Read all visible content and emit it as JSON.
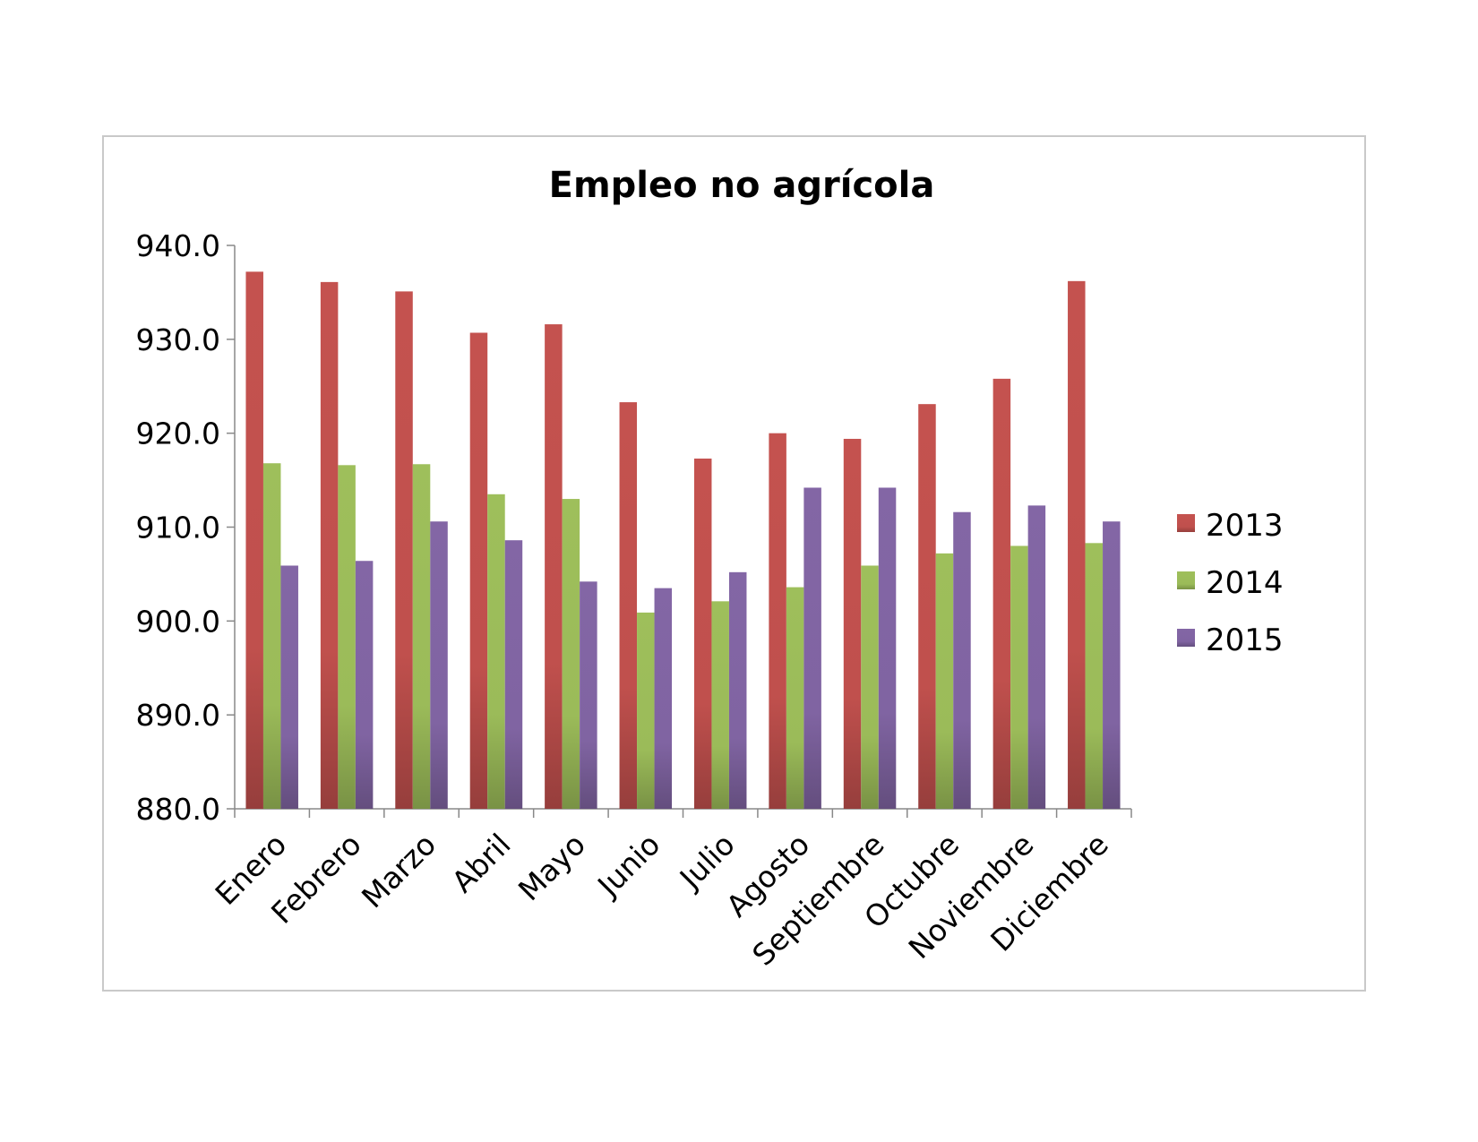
{
  "chart_data": {
    "type": "bar",
    "title": "Empleo no agrícola",
    "categories": [
      "Enero",
      "Febrero",
      "Marzo",
      "Abril",
      "Mayo",
      "Junio",
      "Julio",
      "Agosto",
      "Septiembre",
      "Octubre",
      "Noviembre",
      "Diciembre"
    ],
    "series": [
      {
        "name": "2013",
        "color": "#c0504d",
        "values": [
          937.2,
          936.1,
          935.1,
          930.7,
          931.6,
          923.3,
          917.3,
          920.0,
          919.4,
          923.1,
          925.8,
          936.2
        ]
      },
      {
        "name": "2014",
        "color": "#9bbb59",
        "values": [
          916.8,
          916.6,
          916.7,
          913.5,
          913.0,
          900.9,
          902.1,
          903.6,
          905.9,
          907.2,
          908.0,
          908.3
        ]
      },
      {
        "name": "2015",
        "color": "#8064a2",
        "values": [
          905.9,
          906.4,
          910.6,
          908.6,
          904.2,
          903.5,
          905.2,
          914.2,
          914.2,
          911.6,
          912.3,
          910.6
        ]
      }
    ],
    "ylim": [
      880.0,
      940.0
    ],
    "yticks": [
      "880.0",
      "890.0",
      "900.0",
      "910.0",
      "920.0",
      "930.0",
      "940.0"
    ],
    "xlabel": "",
    "ylabel": "",
    "grid": false,
    "legend_position": "right"
  }
}
